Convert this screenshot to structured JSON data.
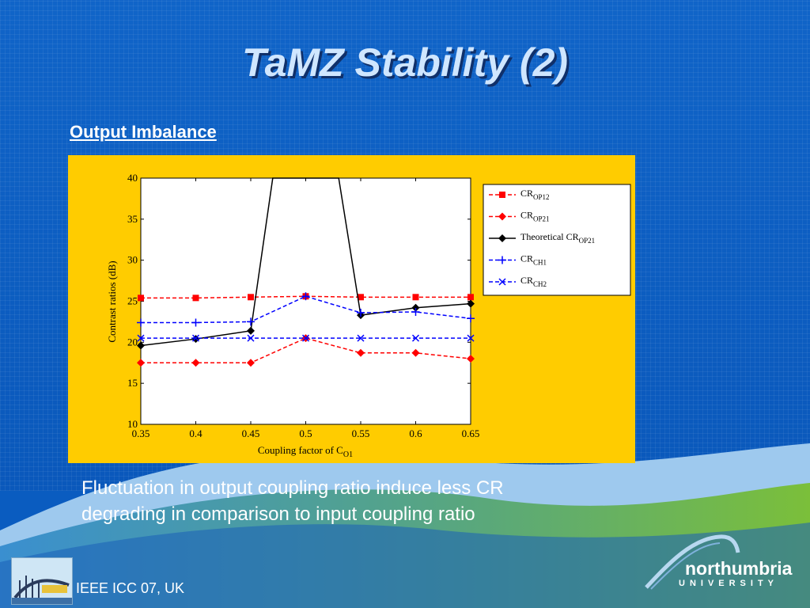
{
  "slide": {
    "title": "TaMZ Stability (2)",
    "subtitle": "Output Imbalance",
    "caption_line1": "Fluctuation in output coupling ratio induce less CR",
    "caption_line2": "degrading in comparison to input coupling ratio",
    "footer": "IEEE ICC 07, UK",
    "university_name": "northumbria",
    "university_sub": "UNIVERSITY"
  },
  "colors": {
    "panel": "#ffcc00",
    "red": "#ff0000",
    "black": "#000000",
    "blue": "#0000ff"
  },
  "chart_data": {
    "type": "line",
    "xlabel_main": "Coupling factor of C",
    "xlabel_sub": "O1",
    "ylabel": "Contrast ratios (dB)",
    "xlim": [
      0.35,
      0.65
    ],
    "ylim": [
      10,
      40
    ],
    "x_ticks": [
      "0.35",
      "0.4",
      "0.45",
      "0.5",
      "0.55",
      "0.6",
      "0.65"
    ],
    "y_ticks": [
      "10",
      "15",
      "20",
      "25",
      "30",
      "35",
      "40"
    ],
    "x": [
      0.35,
      0.4,
      0.45,
      0.5,
      0.55,
      0.6,
      0.65
    ],
    "legend_position": "right",
    "series": [
      {
        "name": "CR",
        "name_sub": "OP12",
        "marker": "square",
        "dashed": true,
        "color": "#ff0000",
        "x": [
          0.35,
          0.4,
          0.45,
          0.5,
          0.55,
          0.6,
          0.65
        ],
        "values": [
          25.4,
          25.4,
          25.5,
          25.6,
          25.5,
          25.5,
          25.5
        ]
      },
      {
        "name": "CR",
        "name_sub": "OP21",
        "marker": "diamond",
        "dashed": true,
        "color": "#ff0000",
        "x": [
          0.35,
          0.4,
          0.45,
          0.5,
          0.55,
          0.6,
          0.65
        ],
        "values": [
          17.5,
          17.5,
          17.5,
          20.5,
          18.7,
          18.7,
          18.0
        ]
      },
      {
        "name": "Theoretical CR",
        "name_sub": "OP21",
        "marker": "diamond",
        "dashed": false,
        "color": "#000000",
        "x": [
          0.35,
          0.4,
          0.45,
          0.47,
          0.53,
          0.55,
          0.6,
          0.65
        ],
        "values": [
          19.6,
          20.4,
          21.4,
          40.0,
          40.0,
          23.3,
          24.2,
          24.7
        ],
        "marker_x": [
          0.35,
          0.4,
          0.45,
          0.55,
          0.6,
          0.65
        ]
      },
      {
        "name": "CR",
        "name_sub": "CH1",
        "marker": "plus",
        "dashed": true,
        "color": "#0000ff",
        "x": [
          0.35,
          0.4,
          0.45,
          0.5,
          0.55,
          0.6,
          0.65
        ],
        "values": [
          22.4,
          22.4,
          22.5,
          25.6,
          23.6,
          23.7,
          22.9
        ]
      },
      {
        "name": "CR",
        "name_sub": "CH2",
        "marker": "x",
        "dashed": true,
        "color": "#0000ff",
        "x": [
          0.35,
          0.4,
          0.45,
          0.5,
          0.55,
          0.6,
          0.65
        ],
        "values": [
          20.5,
          20.5,
          20.5,
          20.5,
          20.5,
          20.5,
          20.5
        ]
      }
    ]
  }
}
